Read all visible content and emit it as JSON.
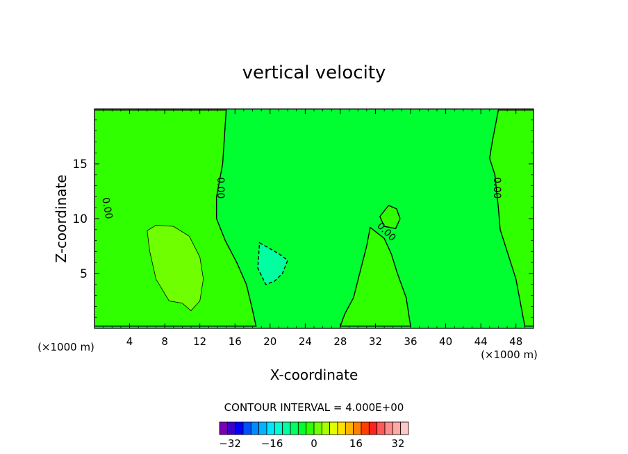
{
  "chart_data": {
    "type": "contour",
    "title": "vertical velocity",
    "xlabel": "X-coordinate",
    "ylabel": "Z-coordinate",
    "x_unit_left": "(×1000 m)",
    "x_unit_right": "(×1000 m)",
    "xlim": [
      0,
      50
    ],
    "ylim": [
      0,
      20
    ],
    "x_ticks": [
      4,
      8,
      12,
      16,
      20,
      24,
      28,
      32,
      36,
      40,
      44,
      48
    ],
    "y_ticks": [
      5,
      10,
      15
    ],
    "contour_interval_text": "CONTOUR INTERVAL = 4.000E+00",
    "contour_interval": 4,
    "zero_contour_label": "0.00",
    "colorbar": {
      "min": -36,
      "max": 36,
      "step": 4,
      "tick_values": [
        -32,
        -16,
        0,
        16,
        32
      ],
      "tick_labels": [
        "−32",
        "−16",
        "0",
        "16",
        "32"
      ],
      "colors": [
        "#7a00b4",
        "#3a00c8",
        "#0000ff",
        "#0050ff",
        "#008cff",
        "#00b4ff",
        "#00e6ff",
        "#00ffd0",
        "#00ffa0",
        "#00ff60",
        "#00ff30",
        "#30ff00",
        "#70ff00",
        "#a8ff00",
        "#e0ff00",
        "#ffe000",
        "#ffb400",
        "#ff8000",
        "#ff4000",
        "#ff2020",
        "#ff5a5a",
        "#ff8c8c",
        "#ffa8a8",
        "#ffc8c8"
      ]
    },
    "zero_contour_labels": [
      {
        "x": 1.1,
        "z": 10.9,
        "angle": 80
      },
      {
        "x": 14.0,
        "z": 12.8,
        "angle": 90
      },
      {
        "x": 33.0,
        "z": 8.6,
        "angle": 45
      },
      {
        "x": 45.5,
        "z": 12.8,
        "angle": 90
      }
    ],
    "regions": [
      {
        "name": "background-zero",
        "value": 0,
        "color": "#00ff30"
      },
      {
        "name": "upward-left",
        "value": 2,
        "color": "#30ff00",
        "polygon": [
          [
            0,
            19.9
          ],
          [
            15,
            19.9
          ],
          [
            14.6,
            15
          ],
          [
            13.9,
            12
          ],
          [
            13.9,
            10
          ],
          [
            14.9,
            8
          ],
          [
            16.2,
            6
          ],
          [
            17.3,
            4
          ],
          [
            17.9,
            2
          ],
          [
            18.4,
            0.2
          ],
          [
            0,
            0.2
          ]
        ]
      },
      {
        "name": "upward-strong",
        "value": 6,
        "color": "#70ff00",
        "polygon": [
          [
            6.0,
            8.9
          ],
          [
            7.0,
            9.4
          ],
          [
            9.0,
            9.3
          ],
          [
            10.8,
            8.4
          ],
          [
            12.0,
            6.5
          ],
          [
            12.4,
            4.5
          ],
          [
            12.0,
            2.5
          ],
          [
            11.0,
            1.6
          ],
          [
            10.0,
            2.3
          ],
          [
            8.5,
            2.5
          ],
          [
            7.0,
            4.5
          ],
          [
            6.3,
            7.0
          ]
        ]
      },
      {
        "name": "upward-right",
        "value": 2,
        "color": "#30ff00",
        "polygon": [
          [
            46.0,
            19.9
          ],
          [
            50,
            19.9
          ],
          [
            50,
            0.2
          ],
          [
            49.0,
            0.2
          ],
          [
            48.0,
            4.5
          ],
          [
            47.0,
            7.0
          ],
          [
            46.2,
            9.0
          ],
          [
            46.0,
            11.0
          ],
          [
            45.6,
            14.0
          ],
          [
            45.0,
            15.5
          ],
          [
            45.3,
            17.0
          ]
        ]
      },
      {
        "name": "downward-region",
        "value": -2,
        "color": "#00ffa0",
        "polygon": [
          [
            18.8,
            7.8
          ],
          [
            19.7,
            7.4
          ],
          [
            21.0,
            6.8
          ],
          [
            22.0,
            6.2
          ],
          [
            21.4,
            5.0
          ],
          [
            20.5,
            4.3
          ],
          [
            19.5,
            4.0
          ],
          [
            18.6,
            5.5
          ]
        ]
      },
      {
        "name": "upward-mid-bulge",
        "value": 2,
        "color": "#30ff00",
        "polygon": [
          [
            31.4,
            9.2
          ],
          [
            31.0,
            7.5
          ],
          [
            30.2,
            5.0
          ],
          [
            29.5,
            2.8
          ],
          [
            28.5,
            1.3
          ],
          [
            28.0,
            0.2
          ],
          [
            36.0,
            0.2
          ],
          [
            35.5,
            2.8
          ],
          [
            34.5,
            5.0
          ],
          [
            33.8,
            6.8
          ],
          [
            33.0,
            8.2
          ]
        ]
      },
      {
        "name": "upward-cap",
        "value": 2,
        "color": "#30ff00",
        "polygon": [
          [
            33.5,
            11.2
          ],
          [
            34.4,
            10.9
          ],
          [
            34.8,
            10.0
          ],
          [
            34.3,
            9.1
          ],
          [
            33.0,
            9.3
          ],
          [
            32.5,
            10.2
          ]
        ]
      }
    ]
  }
}
